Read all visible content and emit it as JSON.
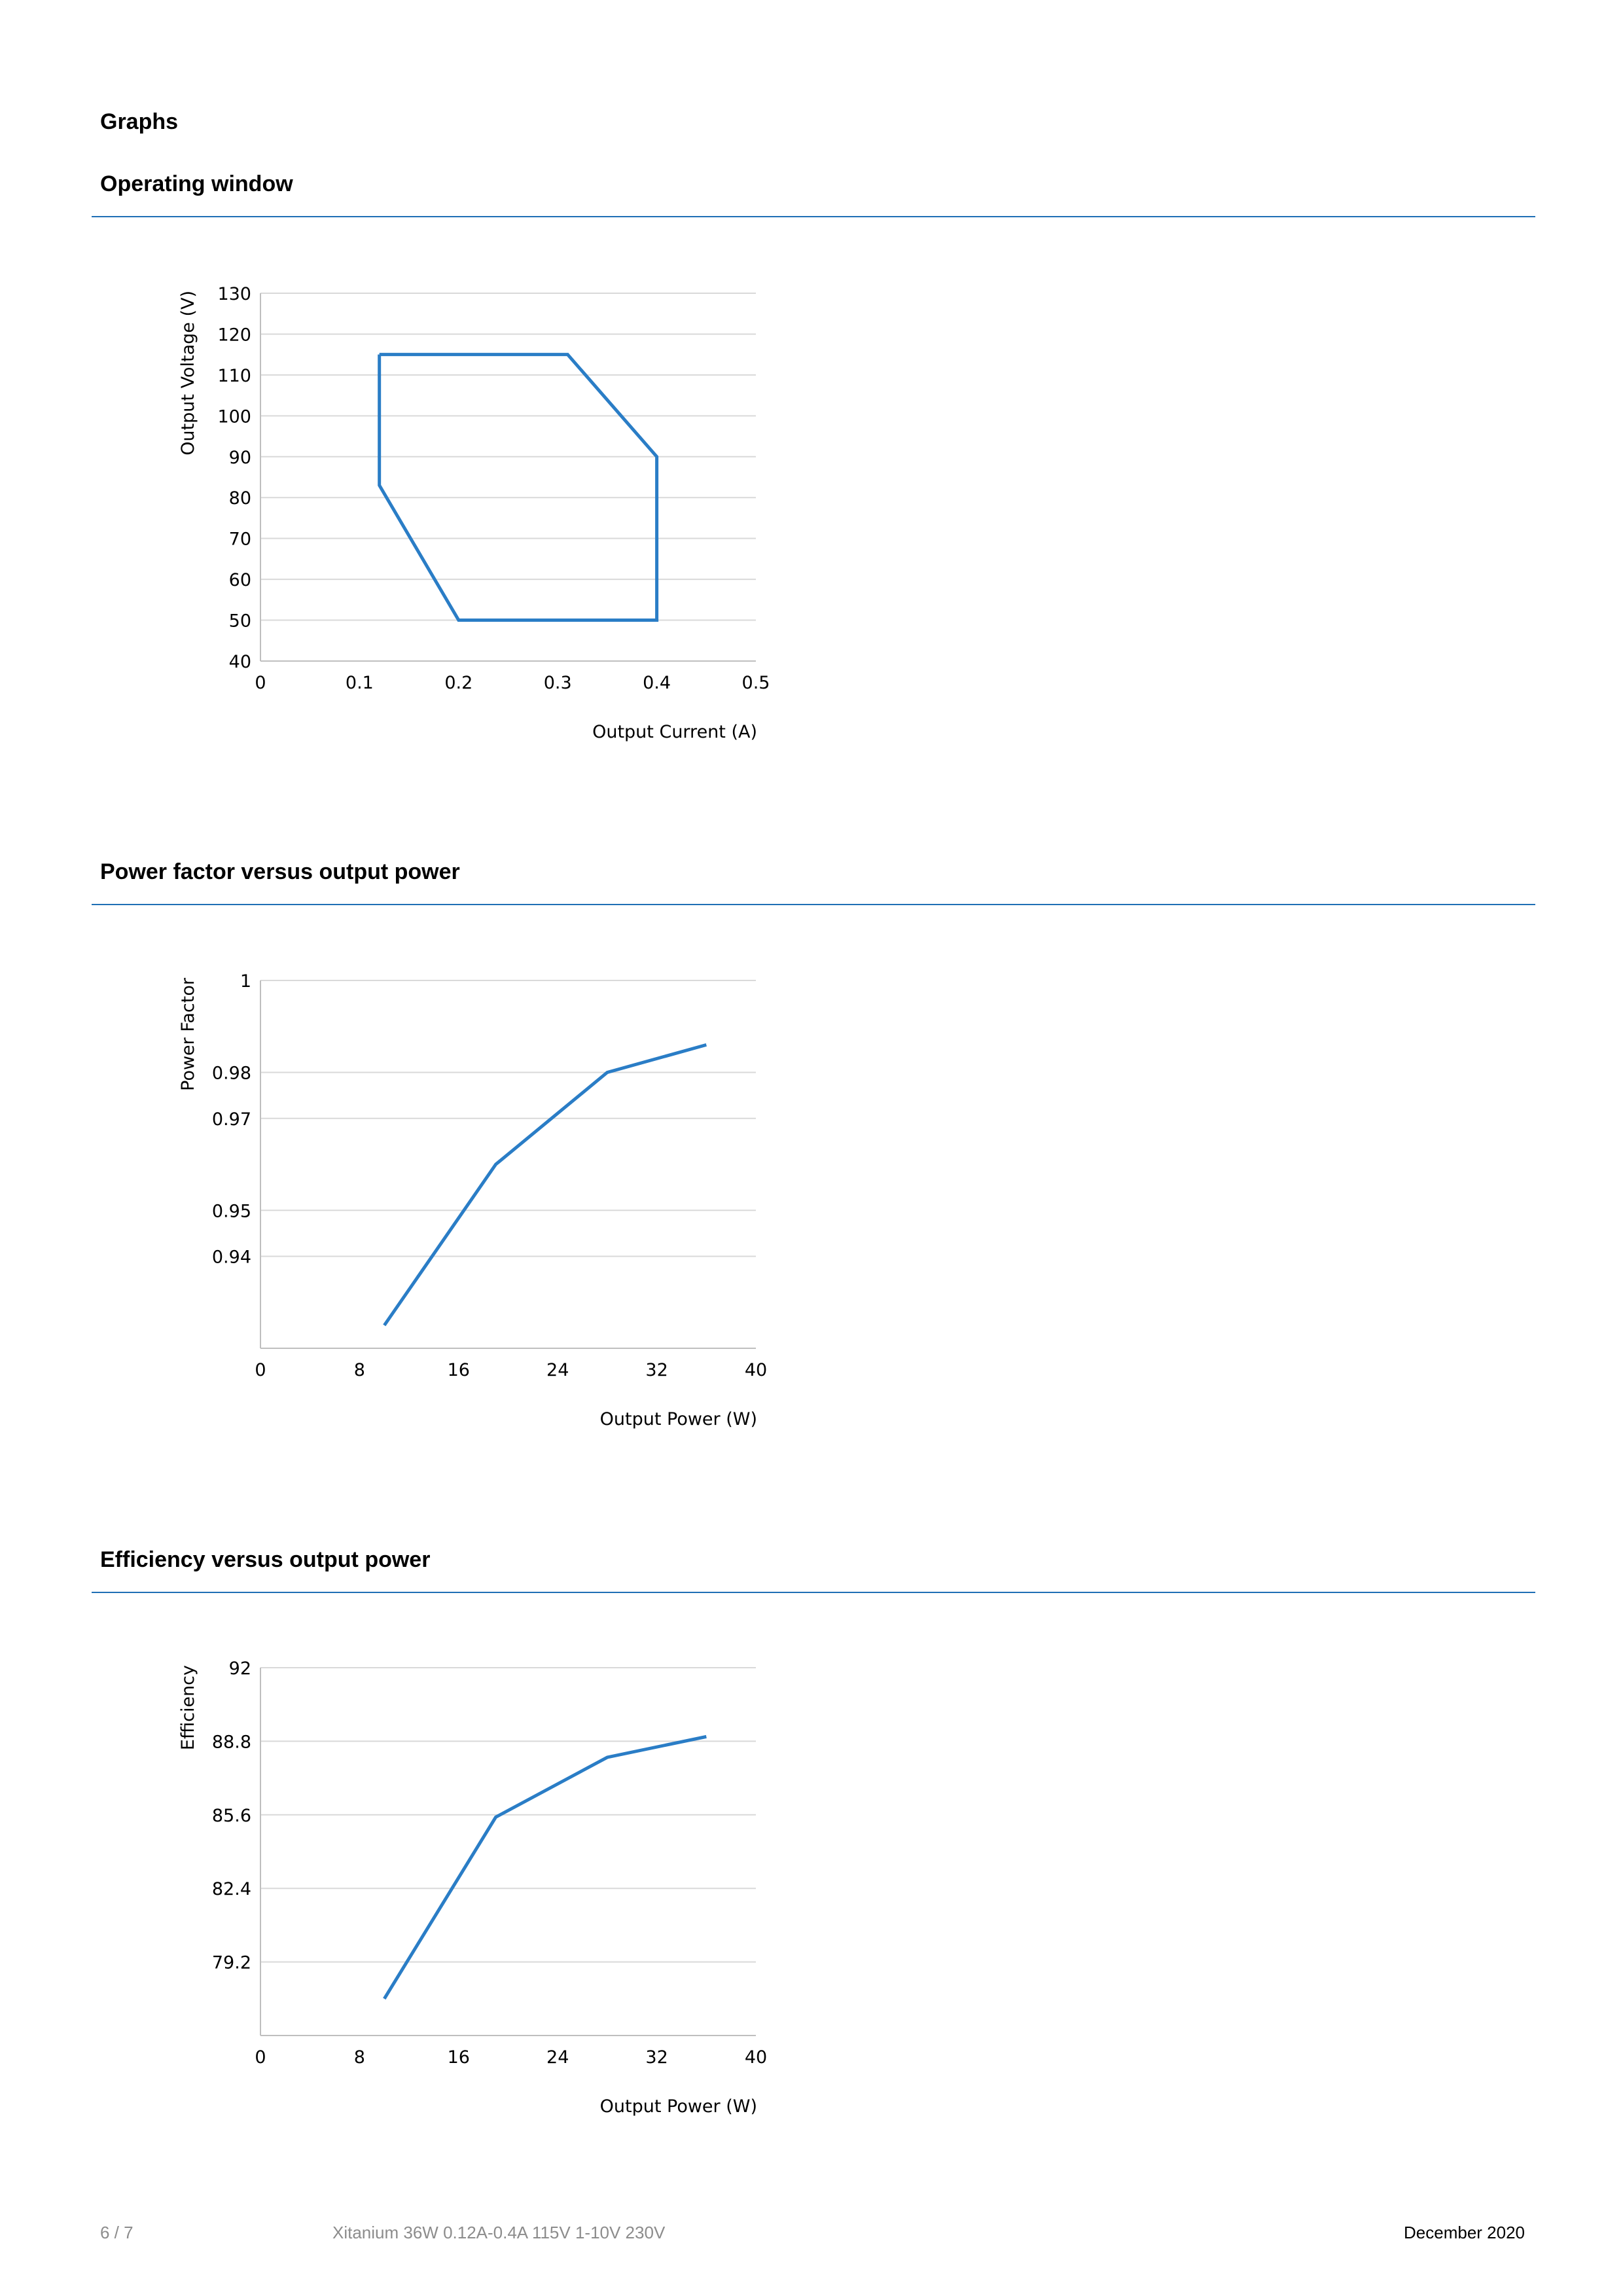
{
  "document": {
    "section_title": "Graphs"
  },
  "footer": {
    "page": "6 / 7",
    "product": "Xitanium 36W 0.12A-0.4A 115V 1-10V 230V",
    "date": "December 2020"
  },
  "colors": {
    "rule": "#1f6fb5",
    "series": "#2a7dc6",
    "grid": "#d9d9d9",
    "footer_gray": "#8c8c8c"
  },
  "chart_data": [
    {
      "title": "Operating window",
      "type": "line",
      "xlabel": "Output Current (A)",
      "ylabel": "Output Voltage (V)",
      "xlim": [
        0,
        0.5
      ],
      "ylim": [
        40,
        130
      ],
      "xticks": [
        "0",
        "0.1",
        "0.2",
        "0.3",
        "0.4",
        "0.5"
      ],
      "yticks": [
        "40",
        "50",
        "60",
        "70",
        "80",
        "90",
        "100",
        "110",
        "120",
        "130"
      ],
      "grid": true,
      "closed": true,
      "series": [
        {
          "x": [
            0.12,
            0.31,
            0.4,
            0.4,
            0.2,
            0.12,
            0.12
          ],
          "y": [
            115,
            115,
            90,
            50,
            50,
            83,
            115
          ]
        }
      ]
    },
    {
      "title": "Power factor versus output power",
      "type": "line",
      "xlabel": "Output Power (W)",
      "ylabel": "Power Factor",
      "xlim": [
        0,
        40
      ],
      "ylim": [
        0.92,
        1.0
      ],
      "xticks": [
        "0",
        "8",
        "16",
        "24",
        "32",
        "40"
      ],
      "yticks": [
        "0.94",
        "0.95",
        "0.97",
        "0.98",
        "1"
      ],
      "grid": true,
      "series": [
        {
          "x": [
            10,
            19,
            28,
            36
          ],
          "y": [
            0.925,
            0.96,
            0.98,
            0.986
          ]
        }
      ]
    },
    {
      "title": "Efficiency versus output power",
      "type": "line",
      "xlabel": "Output Power (W)",
      "ylabel": "Efficiency",
      "xlim": [
        0,
        40
      ],
      "ylim": [
        76,
        92
      ],
      "xticks": [
        "0",
        "8",
        "16",
        "24",
        "32",
        "40"
      ],
      "yticks": [
        "79.2",
        "82.4",
        "85.6",
        "88.8",
        "92"
      ],
      "grid": true,
      "series": [
        {
          "x": [
            10,
            19,
            28,
            36
          ],
          "y": [
            77.6,
            85.5,
            88.1,
            89
          ]
        }
      ]
    }
  ]
}
